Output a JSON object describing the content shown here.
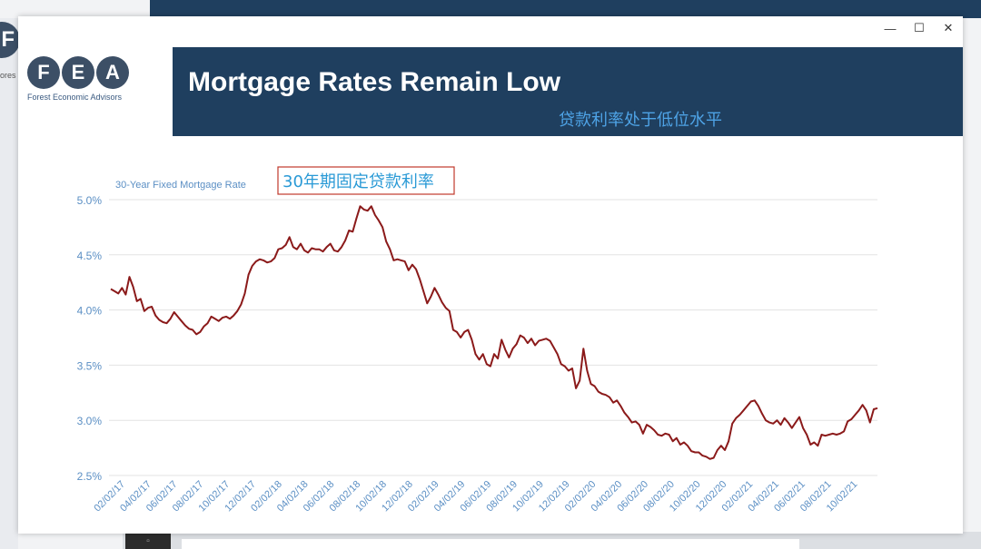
{
  "window": {
    "controls": {
      "minimize": "—",
      "maximize": "☐",
      "close": "✕"
    }
  },
  "background": {
    "logo_letter": "F",
    "peek_text": "ores"
  },
  "logo": {
    "letters": [
      "F",
      "E",
      "A"
    ],
    "caption": "Forest Economic Advisors"
  },
  "header": {
    "title": "Mortgage Rates Remain Low",
    "subtitle": "贷款利率处于低位水平"
  },
  "colors": {
    "header_band": "#1f3f5f",
    "series": "#8b1a1a",
    "axis_label": "#5b8fc4",
    "annotation": "#2a9ad6",
    "annotation_border": "#c0392b"
  },
  "chart_data": {
    "type": "line",
    "title": "30-Year Fixed Mortgage Rate",
    "annotation": "30年期固定贷款利率",
    "ylim": [
      2.5,
      5.0
    ],
    "y_ticks": [
      "5.0%",
      "4.5%",
      "4.0%",
      "3.5%",
      "3.0%",
      "2.5%"
    ],
    "x_ticks": [
      "02/02/17",
      "04/02/17",
      "06/02/17",
      "08/02/17",
      "10/02/17",
      "12/02/17",
      "02/02/18",
      "04/02/18",
      "06/02/18",
      "08/02/18",
      "10/02/18",
      "12/02/18",
      "02/02/19",
      "04/02/19",
      "06/02/19",
      "08/02/19",
      "10/02/19",
      "12/02/19",
      "02/02/20",
      "04/02/20",
      "06/02/20",
      "08/02/20",
      "10/02/20",
      "12/02/20",
      "02/02/21",
      "04/02/21",
      "06/02/21",
      "08/02/21",
      "10/02/21"
    ],
    "grid": true,
    "series": [
      {
        "values": [
          4.19,
          4.17,
          4.15,
          4.2,
          4.14,
          4.3,
          4.21,
          4.08,
          4.1,
          3.99,
          4.02,
          4.03,
          3.95,
          3.91,
          3.89,
          3.88,
          3.92,
          3.98,
          3.94,
          3.9,
          3.86,
          3.83,
          3.82,
          3.78,
          3.8,
          3.85,
          3.88,
          3.94,
          3.92,
          3.9,
          3.93,
          3.94,
          3.92,
          3.95,
          3.99,
          4.05,
          4.15,
          4.32,
          4.4,
          4.44,
          4.46,
          4.45,
          4.43,
          4.44,
          4.47,
          4.55,
          4.56,
          4.59,
          4.66,
          4.57,
          4.55,
          4.6,
          4.54,
          4.52,
          4.56,
          4.55,
          4.55,
          4.53,
          4.57,
          4.6,
          4.54,
          4.53,
          4.57,
          4.63,
          4.72,
          4.71,
          4.83,
          4.94,
          4.91,
          4.9,
          4.94,
          4.86,
          4.81,
          4.75,
          4.62,
          4.55,
          4.45,
          4.46,
          4.45,
          4.44,
          4.36,
          4.41,
          4.37,
          4.28,
          4.17,
          4.06,
          4.12,
          4.2,
          4.14,
          4.07,
          4.02,
          3.99,
          3.82,
          3.8,
          3.75,
          3.8,
          3.82,
          3.73,
          3.6,
          3.55,
          3.6,
          3.51,
          3.49,
          3.6,
          3.56,
          3.73,
          3.64,
          3.57,
          3.65,
          3.69,
          3.77,
          3.75,
          3.7,
          3.74,
          3.68,
          3.72,
          3.73,
          3.74,
          3.72,
          3.66,
          3.6,
          3.51,
          3.49,
          3.45,
          3.47,
          3.29,
          3.36,
          3.65,
          3.45,
          3.33,
          3.31,
          3.26,
          3.24,
          3.23,
          3.21,
          3.16,
          3.18,
          3.13,
          3.07,
          3.03,
          2.98,
          2.99,
          2.96,
          2.88,
          2.96,
          2.94,
          2.91,
          2.87,
          2.86,
          2.88,
          2.87,
          2.81,
          2.84,
          2.78,
          2.8,
          2.77,
          2.72,
          2.71,
          2.71,
          2.68,
          2.67,
          2.65,
          2.66,
          2.73,
          2.77,
          2.73,
          2.81,
          2.97,
          3.02,
          3.05,
          3.09,
          3.13,
          3.17,
          3.18,
          3.13,
          3.06,
          3.0,
          2.98,
          2.97,
          3.0,
          2.96,
          3.02,
          2.98,
          2.93,
          2.98,
          3.03,
          2.93,
          2.87,
          2.78,
          2.8,
          2.77,
          2.87,
          2.86,
          2.87,
          2.88,
          2.87,
          2.88,
          2.9,
          2.99,
          3.01,
          3.05,
          3.09,
          3.14,
          3.09,
          2.98,
          3.1,
          3.11
        ]
      }
    ]
  }
}
